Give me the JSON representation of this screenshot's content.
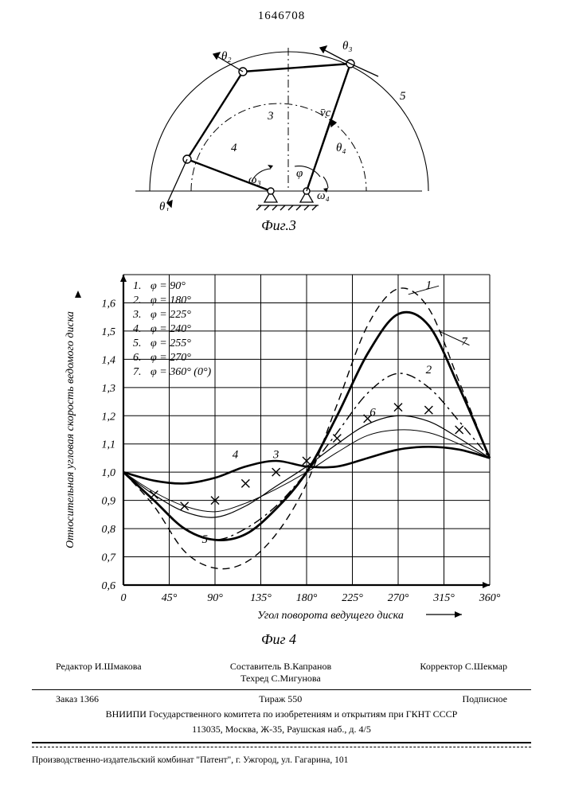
{
  "page_number": "1646708",
  "figure3": {
    "label": "Фиг.3",
    "labels": {
      "theta1": "θ₁",
      "theta2": "θ₂",
      "theta3": "θ₃",
      "theta4": "θ₄",
      "omega3": "ω₃",
      "omega4": "ω₄",
      "phi": "φ",
      "vc": "v̄c",
      "n3": "3",
      "n4": "4",
      "n5": "5"
    },
    "stroke": "#000000",
    "line_thin": 1.1,
    "line_thick": 2.0
  },
  "figure4": {
    "label": "Фиг 4",
    "ylabel": "Относительная угловая скорость ведомого диска",
    "xlabel": "Угол поворота ведущего диска",
    "xlim": [
      0,
      360
    ],
    "ylim": [
      0.6,
      1.7
    ],
    "xticks": [
      "0",
      "45°",
      "90°",
      "135°",
      "180°",
      "225°",
      "270°",
      "315°",
      "360°"
    ],
    "yticks": [
      "0,6",
      "0,7",
      "0,8",
      "0,9",
      "1,0",
      "1,1",
      "1,2",
      "1,3",
      "1,4",
      "1,5",
      "1,6"
    ],
    "legend": [
      {
        "n": "1",
        "phi": "90°"
      },
      {
        "n": "2",
        "phi": "180°"
      },
      {
        "n": "3",
        "phi": "225°"
      },
      {
        "n": "4",
        "phi": "240°"
      },
      {
        "n": "5",
        "phi": "255°"
      },
      {
        "n": "6",
        "phi": "270°"
      },
      {
        "n": "7",
        "phi": "360° (0°)"
      }
    ],
    "series": {
      "1": {
        "style": "dash",
        "width": 1.4,
        "labelpos": [
          300,
          1.65
        ],
        "points": [
          [
            0,
            1.0
          ],
          [
            30,
            0.88
          ],
          [
            60,
            0.72
          ],
          [
            90,
            0.66
          ],
          [
            120,
            0.68
          ],
          [
            150,
            0.78
          ],
          [
            180,
            0.96
          ],
          [
            210,
            1.24
          ],
          [
            240,
            1.52
          ],
          [
            270,
            1.65
          ],
          [
            300,
            1.58
          ],
          [
            330,
            1.32
          ],
          [
            360,
            1.05
          ]
        ]
      },
      "2": {
        "style": "dashdot",
        "width": 1.4,
        "labelpos": [
          300,
          1.35
        ],
        "points": [
          [
            0,
            1.0
          ],
          [
            30,
            0.9
          ],
          [
            60,
            0.8
          ],
          [
            90,
            0.76
          ],
          [
            120,
            0.8
          ],
          [
            150,
            0.88
          ],
          [
            180,
            1.0
          ],
          [
            210,
            1.14
          ],
          [
            240,
            1.28
          ],
          [
            270,
            1.35
          ],
          [
            300,
            1.3
          ],
          [
            330,
            1.18
          ],
          [
            360,
            1.05
          ]
        ]
      },
      "3": {
        "style": "solid",
        "width": 1.2,
        "labelpos": [
          150,
          1.05
        ],
        "points": [
          [
            0,
            1.0
          ],
          [
            30,
            0.92
          ],
          [
            60,
            0.86
          ],
          [
            90,
            0.84
          ],
          [
            120,
            0.88
          ],
          [
            150,
            0.95
          ],
          [
            180,
            1.02
          ],
          [
            210,
            1.1
          ],
          [
            240,
            1.17
          ],
          [
            270,
            1.2
          ],
          [
            300,
            1.18
          ],
          [
            330,
            1.12
          ],
          [
            360,
            1.05
          ]
        ]
      },
      "4": {
        "style": "solid",
        "width": 2.6,
        "labelpos": [
          110,
          1.05
        ],
        "points": [
          [
            0,
            1.0
          ],
          [
            30,
            0.97
          ],
          [
            60,
            0.96
          ],
          [
            90,
            0.98
          ],
          [
            120,
            1.02
          ],
          [
            150,
            1.04
          ],
          [
            180,
            1.02
          ],
          [
            210,
            1.02
          ],
          [
            240,
            1.05
          ],
          [
            270,
            1.08
          ],
          [
            300,
            1.09
          ],
          [
            330,
            1.08
          ],
          [
            360,
            1.05
          ]
        ]
      },
      "5": {
        "style": "solid",
        "width": 1.0,
        "labelpos": [
          80,
          0.75
        ],
        "points": [
          [
            0,
            1.0
          ],
          [
            30,
            0.93
          ],
          [
            60,
            0.88
          ],
          [
            90,
            0.86
          ],
          [
            120,
            0.89
          ],
          [
            150,
            0.94
          ],
          [
            180,
            1.0
          ],
          [
            210,
            1.07
          ],
          [
            240,
            1.13
          ],
          [
            270,
            1.15
          ],
          [
            300,
            1.14
          ],
          [
            330,
            1.1
          ],
          [
            360,
            1.05
          ]
        ]
      },
      "6": {
        "style": "marker-x",
        "width": 1.0,
        "labelpos": [
          245,
          1.2
        ],
        "points": [
          [
            30,
            0.92
          ],
          [
            60,
            0.88
          ],
          [
            90,
            0.9
          ],
          [
            120,
            0.96
          ],
          [
            150,
            1.0
          ],
          [
            180,
            1.04
          ],
          [
            210,
            1.12
          ],
          [
            240,
            1.19
          ],
          [
            270,
            1.23
          ],
          [
            300,
            1.22
          ],
          [
            330,
            1.15
          ]
        ]
      },
      "7": {
        "style": "solid",
        "width": 2.8,
        "labelpos": [
          335,
          1.45
        ],
        "points": [
          [
            0,
            1.0
          ],
          [
            30,
            0.9
          ],
          [
            60,
            0.8
          ],
          [
            90,
            0.76
          ],
          [
            120,
            0.78
          ],
          [
            150,
            0.87
          ],
          [
            180,
            1.0
          ],
          [
            210,
            1.2
          ],
          [
            240,
            1.42
          ],
          [
            270,
            1.56
          ],
          [
            300,
            1.52
          ],
          [
            330,
            1.3
          ],
          [
            360,
            1.05
          ]
        ]
      }
    },
    "axis_width": 2.2,
    "grid_width": 1.0,
    "grid_color": "#000000",
    "bg": "#ffffff"
  },
  "footer": {
    "editor": "Редактор И.Шмакова",
    "compiler": "Составитель В.Капранов",
    "tech": "Техред С.Мигунова",
    "corrector": "Корректор С.Шекмар",
    "order": "Заказ 1366",
    "print_run": "Тираж 550",
    "sub": "Подписное",
    "org": "ВНИИПИ Государственного комитета по изобретениям и открытиям при ГКНТ СССР",
    "addr": "113035, Москва, Ж-35, Раушская наб., д. 4/5",
    "press": "Производственно-издательский комбинат \"Патент\", г. Ужгород, ул. Гагарина, 101"
  }
}
